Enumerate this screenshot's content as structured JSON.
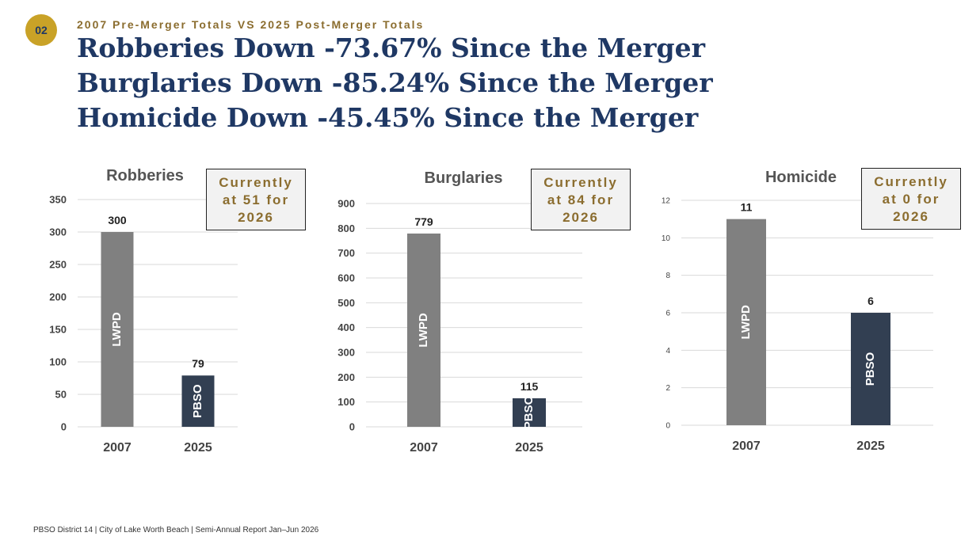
{
  "header": {
    "badge": "02",
    "subtitle": "2007 Pre-Merger Totals VS 2025 Post-Merger Totals",
    "headlines": [
      "Robberies Down -73.67% Since the Merger",
      "Burglaries Down -85.24% Since the Merger",
      "Homicide Down -45.45% Since the Merger"
    ]
  },
  "chart_data": [
    {
      "type": "bar",
      "title": "Robberies",
      "categories": [
        "2007",
        "2025"
      ],
      "values": [
        300,
        79
      ],
      "bar_labels": [
        "LWPD",
        "PBSO"
      ],
      "colors": [
        "#808080",
        "#323f52"
      ],
      "ylim": [
        0,
        350
      ],
      "yticks": [
        0,
        50,
        100,
        150,
        200,
        250,
        300,
        350
      ],
      "grid": true,
      "annotation": "Currently at 51 for 2026"
    },
    {
      "type": "bar",
      "title": "Burglaries",
      "categories": [
        "2007",
        "2025"
      ],
      "values": [
        779,
        115
      ],
      "bar_labels": [
        "LWPD",
        "PBSO"
      ],
      "colors": [
        "#808080",
        "#323f52"
      ],
      "ylim": [
        0,
        900
      ],
      "yticks": [
        0,
        100,
        200,
        300,
        400,
        500,
        600,
        700,
        800,
        900
      ],
      "grid": true,
      "annotation": "Currently at 84 for 2026"
    },
    {
      "type": "bar",
      "title": "Homicide",
      "categories": [
        "2007",
        "2025"
      ],
      "values": [
        11,
        6
      ],
      "bar_labels": [
        "LWPD",
        "PBSO"
      ],
      "colors": [
        "#808080",
        "#323f52"
      ],
      "ylim": [
        0,
        12
      ],
      "yticks": [
        0,
        2,
        4,
        6,
        8,
        10,
        12
      ],
      "grid": true,
      "annotation": "Currently at 0 for 2026"
    }
  ],
  "footer": "PBSO District 14  |  City of Lake Worth Beach  |  Semi-Annual Report Jan–Jun 2026"
}
